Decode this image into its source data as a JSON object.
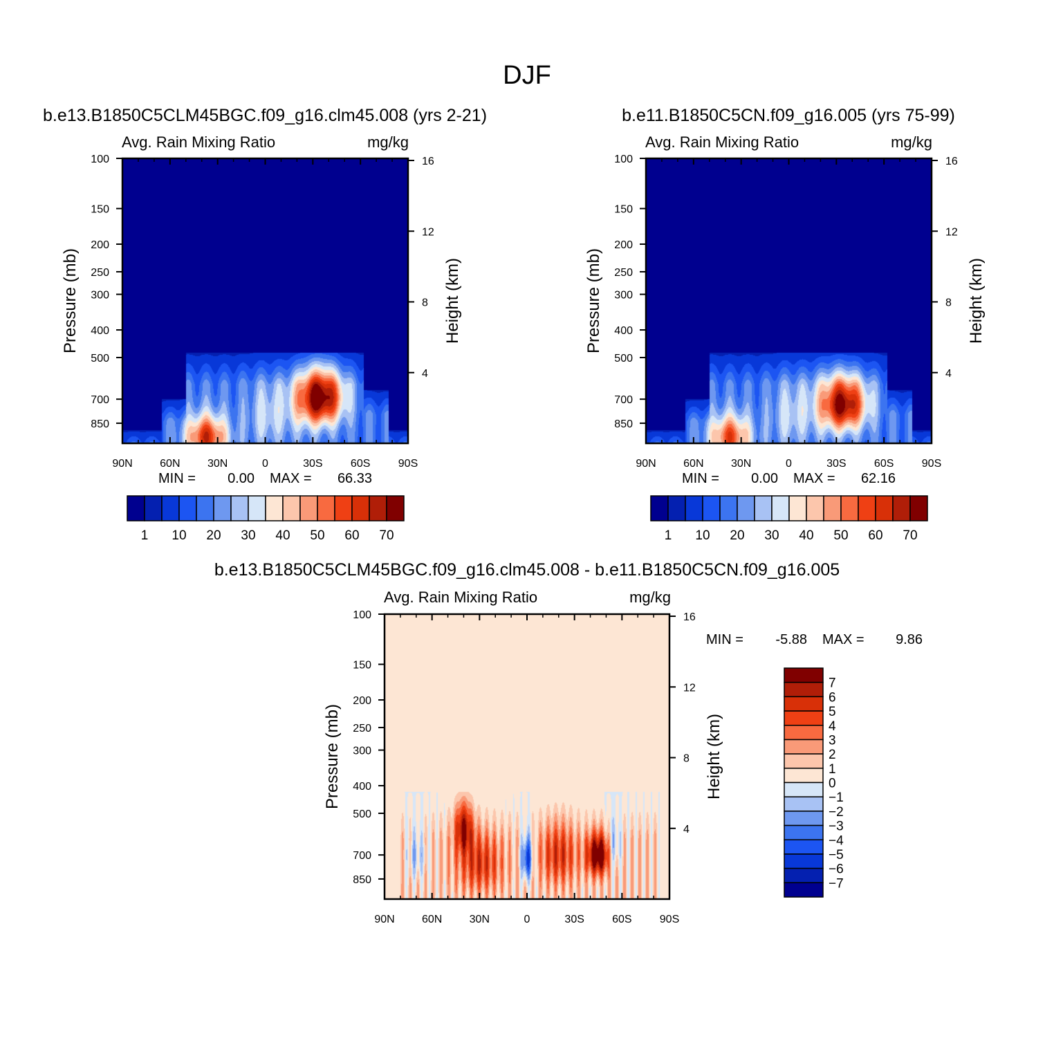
{
  "figure_title": "DJF",
  "panels": [
    {
      "title": "b.e13.B1850C5CLM45BGC.f09_g16.clm45.008 (yrs 2-21)",
      "left_label": "Avg. Rain Mixing Ratio",
      "right_label": "mg/kg",
      "ylabel": "Pressure (mb)",
      "y2label": "Height (km)",
      "stats": {
        "min_label": "MIN =",
        "min": "0.00",
        "max_label": "MAX =",
        "max": "66.33"
      }
    },
    {
      "title": "b.e11.B1850C5CN.f09_g16.005 (yrs 75-99)",
      "left_label": "Avg. Rain Mixing Ratio",
      "right_label": "mg/kg",
      "ylabel": "Pressure (mb)",
      "y2label": "Height (km)",
      "stats": {
        "min_label": "MIN =",
        "min": "0.00",
        "max_label": "MAX =",
        "max": "62.16"
      }
    },
    {
      "title": "b.e13.B1850C5CLM45BGC.f09_g16.clm45.008 - b.e11.B1850C5CN.f09_g16.005",
      "left_label": "Avg. Rain Mixing Ratio",
      "right_label": "mg/kg",
      "ylabel": "Pressure (mb)",
      "y2label": "Height (km)",
      "stats": {
        "min_label": "MIN =",
        "min": "-5.88",
        "max_label": "MAX =",
        "max": "9.86"
      }
    }
  ],
  "axes": {
    "x_ticks": [
      "90N",
      "60N",
      "30N",
      "0",
      "30S",
      "60S",
      "90S"
    ],
    "y_ticks": [
      "100",
      "150",
      "200",
      "250",
      "300",
      "400",
      "500",
      "700",
      "850"
    ],
    "y2_ticks": [
      "16",
      "12",
      "8",
      "4"
    ]
  },
  "colorbars": {
    "abs_labels": [
      "1",
      "10",
      "20",
      "30",
      "40",
      "50",
      "60",
      "70"
    ],
    "abs_colors": [
      "#00008f",
      "#0420b0",
      "#0838d8",
      "#1c55f2",
      "#3c74f0",
      "#6e98f0",
      "#a8c2f4",
      "#d6e6f8",
      "#fde6d4",
      "#fcc6ac",
      "#f99a78",
      "#f86a40",
      "#ef4014",
      "#d83008",
      "#b01e08",
      "#800000"
    ],
    "diff_labels": [
      "7",
      "6",
      "5",
      "4",
      "3",
      "2",
      "1",
      "0",
      "-1",
      "-2",
      "-3",
      "-4",
      "-5",
      "-6",
      "-7"
    ],
    "diff_colors": [
      "#800000",
      "#b01e08",
      "#d83008",
      "#ef4014",
      "#f86a40",
      "#f99a78",
      "#fcc6ac",
      "#fde6d4",
      "#d6e6f8",
      "#a8c2f4",
      "#6e98f0",
      "#3c74f0",
      "#1c55f2",
      "#0838d8",
      "#0420b0",
      "#00008f"
    ]
  },
  "chart_data": [
    {
      "type": "heatmap",
      "title": "b.e13.B1850C5CLM45BGC.f09_g16.clm45.008 (yrs 2-21)",
      "variable": "Avg. Rain Mixing Ratio",
      "units": "mg/kg",
      "xlabel": "",
      "ylabel": "Pressure (mb)",
      "y2label": "Height (km)",
      "x_range": [
        "90N",
        "90S"
      ],
      "y_range_mb": [
        1000,
        100
      ],
      "y_scale": "log",
      "y2_range_km": [
        0,
        16
      ],
      "min": 0.0,
      "max": 66.33,
      "levels": [
        1,
        5,
        10,
        15,
        20,
        25,
        30,
        35,
        40,
        45,
        50,
        55,
        60,
        65,
        70
      ],
      "features": [
        {
          "lat": 37,
          "pressure_mb": 950,
          "value": 55
        },
        {
          "lat": -35,
          "pressure_mb": 700,
          "value": 66.33
        },
        {
          "lat": 0,
          "pressure_mb": 800,
          "value": 15
        }
      ]
    },
    {
      "type": "heatmap",
      "title": "b.e11.B1850C5CN.f09_g16.005 (yrs 75-99)",
      "variable": "Avg. Rain Mixing Ratio",
      "units": "mg/kg",
      "xlabel": "",
      "ylabel": "Pressure (mb)",
      "y2label": "Height (km)",
      "x_range": [
        "90N",
        "90S"
      ],
      "y_range_mb": [
        1000,
        100
      ],
      "y_scale": "log",
      "y2_range_km": [
        0,
        16
      ],
      "min": 0.0,
      "max": 62.16,
      "levels": [
        1,
        5,
        10,
        15,
        20,
        25,
        30,
        35,
        40,
        45,
        50,
        55,
        60,
        65,
        70
      ],
      "features": [
        {
          "lat": 37,
          "pressure_mb": 950,
          "value": 50
        },
        {
          "lat": -35,
          "pressure_mb": 730,
          "value": 62.16
        },
        {
          "lat": 0,
          "pressure_mb": 800,
          "value": 15
        }
      ]
    },
    {
      "type": "heatmap",
      "title": "b.e13.B1850C5CLM45BGC.f09_g16.clm45.008 - b.e11.B1850C5CN.f09_g16.005",
      "variable": "Avg. Rain Mixing Ratio",
      "units": "mg/kg",
      "xlabel": "",
      "ylabel": "Pressure (mb)",
      "y2label": "Height (km)",
      "x_range": [
        "90N",
        "90S"
      ],
      "y_range_mb": [
        1000,
        100
      ],
      "y_scale": "log",
      "y2_range_km": [
        0,
        16
      ],
      "min": -5.88,
      "max": 9.86,
      "levels": [
        -7,
        -6,
        -5,
        -4,
        -3,
        -2,
        -1,
        0,
        1,
        2,
        3,
        4,
        5,
        6,
        7
      ],
      "features": [
        {
          "lat": -45,
          "pressure_mb": 700,
          "value": 9.86
        },
        {
          "lat": 40,
          "pressure_mb": 550,
          "value": 7
        },
        {
          "lat": 0,
          "pressure_mb": 720,
          "value": -5.88
        }
      ]
    }
  ]
}
